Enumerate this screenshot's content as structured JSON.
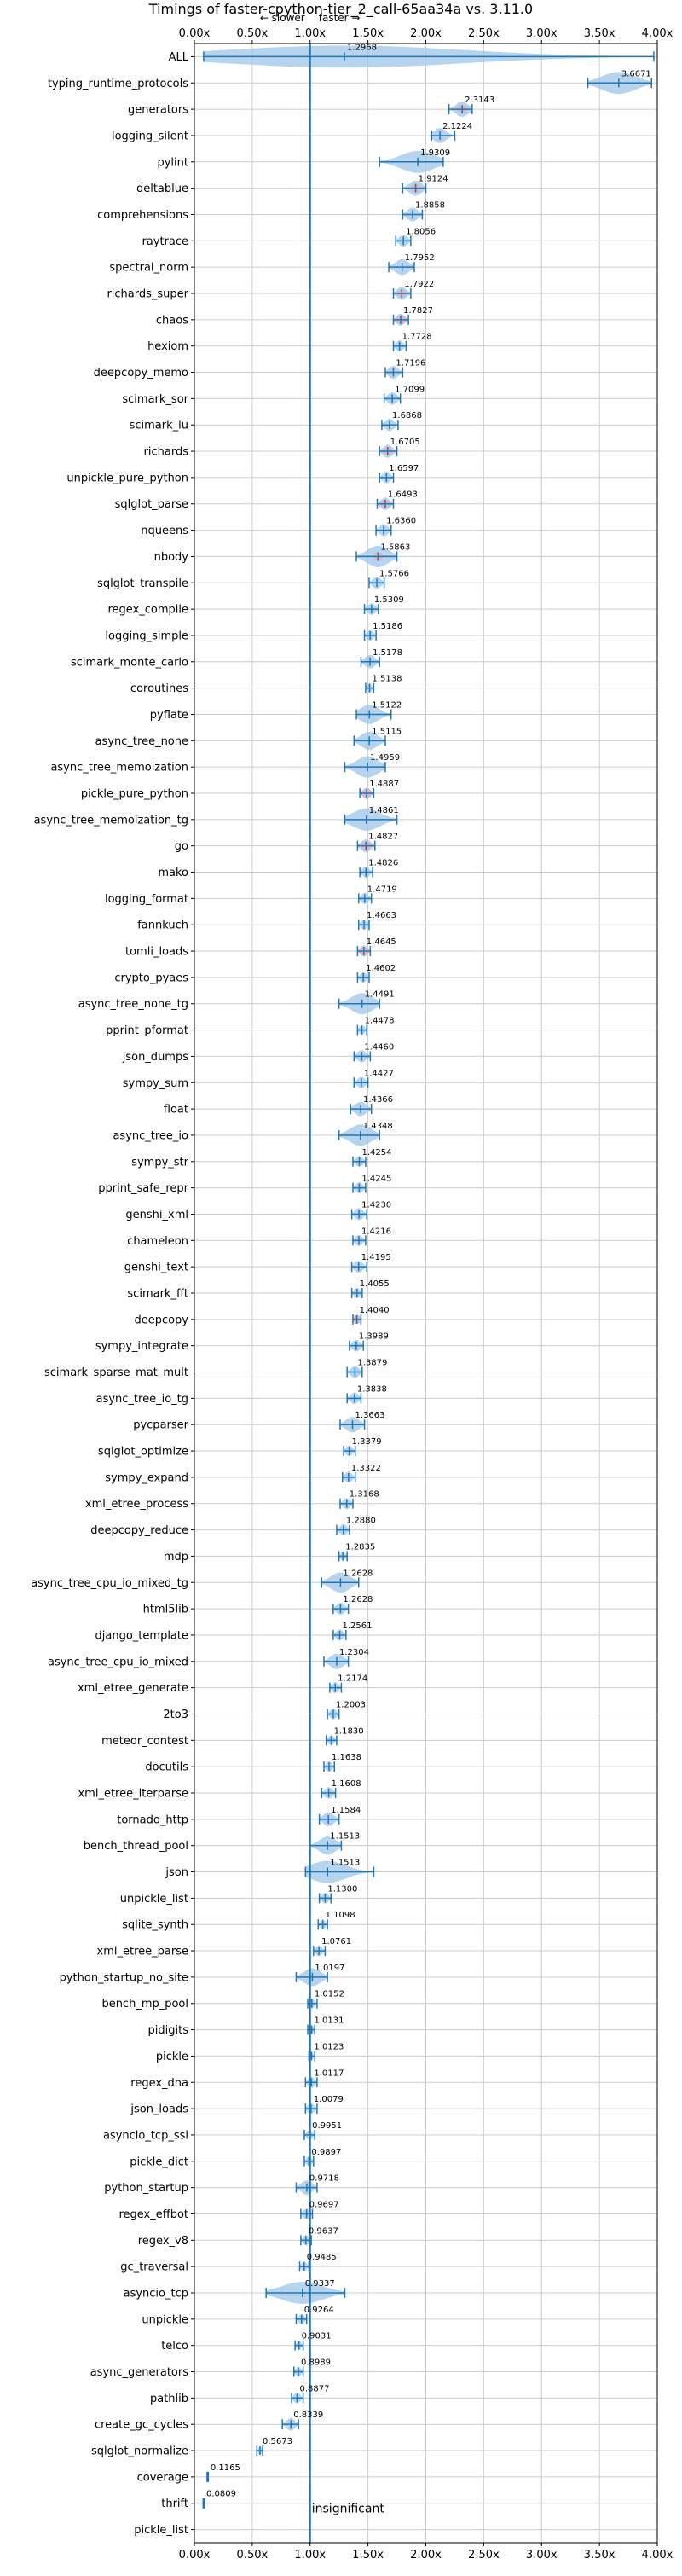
{
  "chart_data": {
    "type": "violin",
    "title": "Timings of faster-cpython-tier_2_call-65aa34a vs. 3.11.0",
    "direction_labels": {
      "slower": "← slower",
      "faster": "faster →"
    },
    "xlim": [
      0.0,
      4.0
    ],
    "xticks": [
      0.0,
      0.5,
      1.0,
      1.5,
      2.0,
      2.5,
      3.0,
      3.5,
      4.0
    ],
    "xtick_labels": [
      "0.00x",
      "0.50x",
      "1.00x",
      "1.50x",
      "2.00x",
      "2.50x",
      "3.00x",
      "3.50x",
      "4.00x"
    ],
    "reference_line": 1.0,
    "grid": true,
    "footnote": "insignificant",
    "colors": {
      "violin": "#9ec6e8",
      "line": "#1f77b4",
      "significant_faster": "#f4a6ad",
      "text": "#000000",
      "grid": "#cccccc"
    },
    "benchmarks": [
      {
        "name": "ALL",
        "value": 1.2968,
        "min": 0.08,
        "max": 3.97
      },
      {
        "name": "typing_runtime_protocols",
        "value": 3.6671,
        "min": 3.4,
        "max": 3.95
      },
      {
        "name": "generators",
        "value": 2.3143,
        "min": 2.2,
        "max": 2.4
      },
      {
        "name": "logging_silent",
        "value": 2.1224,
        "min": 2.05,
        "max": 2.25
      },
      {
        "name": "pylint",
        "value": 1.9309,
        "min": 1.6,
        "max": 2.15
      },
      {
        "name": "deltablue",
        "value": 1.9124,
        "min": 1.8,
        "max": 2.0
      },
      {
        "name": "comprehensions",
        "value": 1.8858,
        "min": 1.8,
        "max": 1.97
      },
      {
        "name": "raytrace",
        "value": 1.8056,
        "min": 1.74,
        "max": 1.87
      },
      {
        "name": "spectral_norm",
        "value": 1.7952,
        "min": 1.68,
        "max": 1.9
      },
      {
        "name": "richards_super",
        "value": 1.7922,
        "min": 1.72,
        "max": 1.87
      },
      {
        "name": "chaos",
        "value": 1.7827,
        "min": 1.72,
        "max": 1.85
      },
      {
        "name": "hexiom",
        "value": 1.7728,
        "min": 1.72,
        "max": 1.83
      },
      {
        "name": "deepcopy_memo",
        "value": 1.7196,
        "min": 1.65,
        "max": 1.8
      },
      {
        "name": "scimark_sor",
        "value": 1.7099,
        "min": 1.64,
        "max": 1.78
      },
      {
        "name": "scimark_lu",
        "value": 1.6868,
        "min": 1.62,
        "max": 1.76
      },
      {
        "name": "richards",
        "value": 1.6705,
        "min": 1.6,
        "max": 1.75
      },
      {
        "name": "unpickle_pure_python",
        "value": 1.6597,
        "min": 1.6,
        "max": 1.72
      },
      {
        "name": "sqlglot_parse",
        "value": 1.6493,
        "min": 1.58,
        "max": 1.72
      },
      {
        "name": "nqueens",
        "value": 1.636,
        "min": 1.57,
        "max": 1.7
      },
      {
        "name": "nbody",
        "value": 1.5863,
        "min": 1.4,
        "max": 1.75
      },
      {
        "name": "sqlglot_transpile",
        "value": 1.5766,
        "min": 1.51,
        "max": 1.64
      },
      {
        "name": "regex_compile",
        "value": 1.5309,
        "min": 1.47,
        "max": 1.59
      },
      {
        "name": "logging_simple",
        "value": 1.5186,
        "min": 1.47,
        "max": 1.57
      },
      {
        "name": "scimark_monte_carlo",
        "value": 1.5178,
        "min": 1.44,
        "max": 1.6
      },
      {
        "name": "coroutines",
        "value": 1.5138,
        "min": 1.48,
        "max": 1.55
      },
      {
        "name": "pyflate",
        "value": 1.5122,
        "min": 1.4,
        "max": 1.7
      },
      {
        "name": "async_tree_none",
        "value": 1.5115,
        "min": 1.38,
        "max": 1.65
      },
      {
        "name": "async_tree_memoization",
        "value": 1.4959,
        "min": 1.3,
        "max": 1.65
      },
      {
        "name": "pickle_pure_python",
        "value": 1.4887,
        "min": 1.43,
        "max": 1.55
      },
      {
        "name": "async_tree_memoization_tg",
        "value": 1.4861,
        "min": 1.3,
        "max": 1.75
      },
      {
        "name": "go",
        "value": 1.4827,
        "min": 1.41,
        "max": 1.56
      },
      {
        "name": "mako",
        "value": 1.4826,
        "min": 1.43,
        "max": 1.54
      },
      {
        "name": "logging_format",
        "value": 1.4719,
        "min": 1.42,
        "max": 1.53
      },
      {
        "name": "fannkuch",
        "value": 1.4663,
        "min": 1.42,
        "max": 1.51
      },
      {
        "name": "tomli_loads",
        "value": 1.4645,
        "min": 1.41,
        "max": 1.52
      },
      {
        "name": "crypto_pyaes",
        "value": 1.4602,
        "min": 1.41,
        "max": 1.51
      },
      {
        "name": "async_tree_none_tg",
        "value": 1.4491,
        "min": 1.25,
        "max": 1.6
      },
      {
        "name": "pprint_pformat",
        "value": 1.4478,
        "min": 1.41,
        "max": 1.49
      },
      {
        "name": "json_dumps",
        "value": 1.446,
        "min": 1.38,
        "max": 1.52
      },
      {
        "name": "sympy_sum",
        "value": 1.4427,
        "min": 1.38,
        "max": 1.5
      },
      {
        "name": "float",
        "value": 1.4366,
        "min": 1.35,
        "max": 1.53
      },
      {
        "name": "async_tree_io",
        "value": 1.4348,
        "min": 1.25,
        "max": 1.6
      },
      {
        "name": "sympy_str",
        "value": 1.4254,
        "min": 1.37,
        "max": 1.48
      },
      {
        "name": "pprint_safe_repr",
        "value": 1.4245,
        "min": 1.37,
        "max": 1.48
      },
      {
        "name": "genshi_xml",
        "value": 1.423,
        "min": 1.36,
        "max": 1.49
      },
      {
        "name": "chameleon",
        "value": 1.4216,
        "min": 1.37,
        "max": 1.48
      },
      {
        "name": "genshi_text",
        "value": 1.4195,
        "min": 1.36,
        "max": 1.49
      },
      {
        "name": "scimark_fft",
        "value": 1.4055,
        "min": 1.36,
        "max": 1.45
      },
      {
        "name": "deepcopy",
        "value": 1.404,
        "min": 1.37,
        "max": 1.44
      },
      {
        "name": "sympy_integrate",
        "value": 1.3989,
        "min": 1.34,
        "max": 1.46
      },
      {
        "name": "scimark_sparse_mat_mult",
        "value": 1.3879,
        "min": 1.32,
        "max": 1.45
      },
      {
        "name": "async_tree_io_tg",
        "value": 1.3838,
        "min": 1.32,
        "max": 1.44
      },
      {
        "name": "pycparser",
        "value": 1.3663,
        "min": 1.26,
        "max": 1.47
      },
      {
        "name": "sqlglot_optimize",
        "value": 1.3379,
        "min": 1.29,
        "max": 1.39
      },
      {
        "name": "sympy_expand",
        "value": 1.3322,
        "min": 1.28,
        "max": 1.39
      },
      {
        "name": "xml_etree_process",
        "value": 1.3168,
        "min": 1.26,
        "max": 1.37
      },
      {
        "name": "deepcopy_reduce",
        "value": 1.288,
        "min": 1.23,
        "max": 1.34
      },
      {
        "name": "mdp",
        "value": 1.2835,
        "min": 1.25,
        "max": 1.32
      },
      {
        "name": "async_tree_cpu_io_mixed_tg",
        "value": 1.2628,
        "min": 1.1,
        "max": 1.42
      },
      {
        "name": "html5lib",
        "value": 1.2628,
        "min": 1.2,
        "max": 1.33
      },
      {
        "name": "django_template",
        "value": 1.2561,
        "min": 1.2,
        "max": 1.31
      },
      {
        "name": "async_tree_cpu_io_mixed",
        "value": 1.2304,
        "min": 1.12,
        "max": 1.33
      },
      {
        "name": "xml_etree_generate",
        "value": 1.2174,
        "min": 1.17,
        "max": 1.27
      },
      {
        "name": "2to3",
        "value": 1.2003,
        "min": 1.15,
        "max": 1.25
      },
      {
        "name": "meteor_contest",
        "value": 1.183,
        "min": 1.14,
        "max": 1.23
      },
      {
        "name": "docutils",
        "value": 1.1638,
        "min": 1.12,
        "max": 1.21
      },
      {
        "name": "xml_etree_iterparse",
        "value": 1.1608,
        "min": 1.1,
        "max": 1.22
      },
      {
        "name": "tornado_http",
        "value": 1.1584,
        "min": 1.08,
        "max": 1.25
      },
      {
        "name": "bench_thread_pool",
        "value": 1.1513,
        "min": 1.0,
        "max": 1.27
      },
      {
        "name": "json",
        "value": 1.1513,
        "min": 0.96,
        "max": 1.55
      },
      {
        "name": "unpickle_list",
        "value": 1.13,
        "min": 1.08,
        "max": 1.18
      },
      {
        "name": "sqlite_synth",
        "value": 1.1098,
        "min": 1.07,
        "max": 1.15
      },
      {
        "name": "xml_etree_parse",
        "value": 1.0761,
        "min": 1.03,
        "max": 1.13
      },
      {
        "name": "python_startup_no_site",
        "value": 1.0197,
        "min": 0.88,
        "max": 1.15
      },
      {
        "name": "bench_mp_pool",
        "value": 1.0152,
        "min": 0.98,
        "max": 1.06
      },
      {
        "name": "pidigits",
        "value": 1.0131,
        "min": 0.98,
        "max": 1.04
      },
      {
        "name": "pickle",
        "value": 1.0123,
        "min": 0.99,
        "max": 1.04
      },
      {
        "name": "regex_dna",
        "value": 1.0117,
        "min": 0.96,
        "max": 1.06
      },
      {
        "name": "json_loads",
        "value": 1.0079,
        "min": 0.96,
        "max": 1.06
      },
      {
        "name": "asyncio_tcp_ssl",
        "value": 0.9951,
        "min": 0.95,
        "max": 1.04
      },
      {
        "name": "pickle_dict",
        "value": 0.9897,
        "min": 0.95,
        "max": 1.03
      },
      {
        "name": "python_startup",
        "value": 0.9718,
        "min": 0.88,
        "max": 1.06
      },
      {
        "name": "regex_effbot",
        "value": 0.9697,
        "min": 0.92,
        "max": 1.02
      },
      {
        "name": "regex_v8",
        "value": 0.9637,
        "min": 0.92,
        "max": 1.01
      },
      {
        "name": "gc_traversal",
        "value": 0.9485,
        "min": 0.91,
        "max": 0.99
      },
      {
        "name": "asyncio_tcp",
        "value": 0.9337,
        "min": 0.62,
        "max": 1.3
      },
      {
        "name": "unpickle",
        "value": 0.9264,
        "min": 0.88,
        "max": 0.97
      },
      {
        "name": "telco",
        "value": 0.9031,
        "min": 0.87,
        "max": 0.94
      },
      {
        "name": "async_generators",
        "value": 0.8989,
        "min": 0.86,
        "max": 0.94
      },
      {
        "name": "pathlib",
        "value": 0.8877,
        "min": 0.84,
        "max": 0.94
      },
      {
        "name": "create_gc_cycles",
        "value": 0.8339,
        "min": 0.76,
        "max": 0.9
      },
      {
        "name": "sqlglot_normalize",
        "value": 0.5673,
        "min": 0.54,
        "max": 0.59
      },
      {
        "name": "coverage",
        "value": 0.1165,
        "min": 0.11,
        "max": 0.12
      },
      {
        "name": "thrift",
        "value": 0.0809,
        "min": 0.076,
        "max": 0.086
      },
      {
        "name": "pickle_list",
        "value": null,
        "min": null,
        "max": null
      }
    ],
    "insignificant": [
      "pickle_list"
    ],
    "highlighted_faster": [
      "generators",
      "deltablue",
      "richards_super",
      "chaos",
      "richards",
      "sqlglot_parse",
      "nbody",
      "pickle_pure_python",
      "go",
      "tomli_loads",
      "deepcopy"
    ]
  }
}
